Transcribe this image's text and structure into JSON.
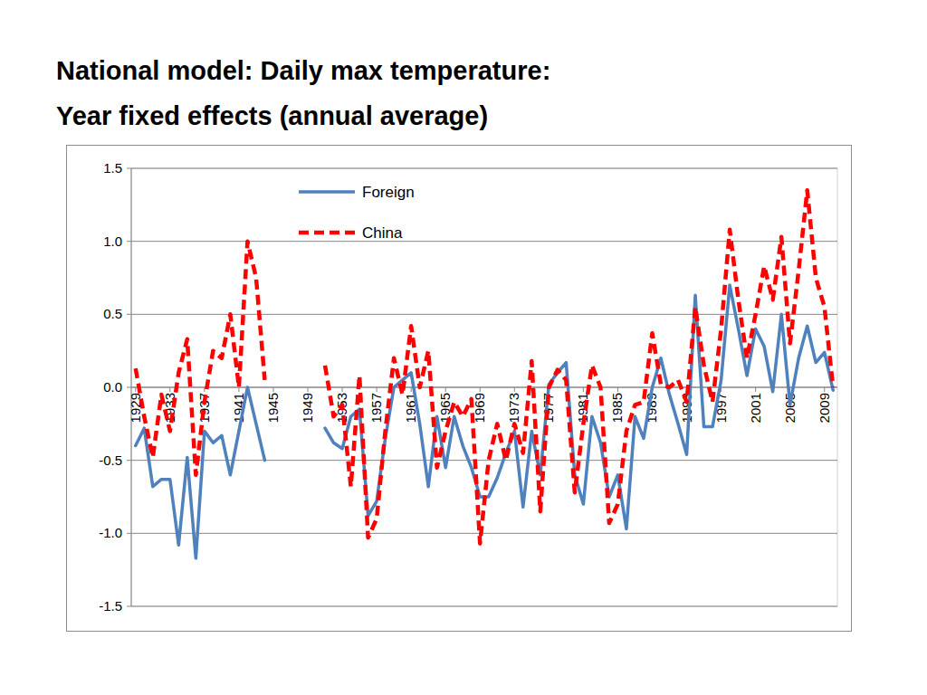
{
  "chart_data": {
    "type": "line",
    "title": "National model: Daily max temperature:",
    "subtitle": "Year fixed effects (annual average)",
    "x": [
      1929,
      1930,
      1931,
      1932,
      1933,
      1934,
      1935,
      1936,
      1937,
      1938,
      1939,
      1940,
      1941,
      1942,
      1943,
      1944,
      1945,
      1946,
      1947,
      1948,
      1949,
      1950,
      1951,
      1952,
      1953,
      1954,
      1955,
      1956,
      1957,
      1958,
      1959,
      1960,
      1961,
      1962,
      1963,
      1964,
      1965,
      1966,
      1967,
      1968,
      1969,
      1970,
      1971,
      1972,
      1973,
      1974,
      1975,
      1976,
      1977,
      1978,
      1979,
      1980,
      1981,
      1982,
      1983,
      1984,
      1985,
      1986,
      1987,
      1988,
      1989,
      1990,
      1991,
      1992,
      1993,
      1994,
      1995,
      1996,
      1997,
      1998,
      1999,
      2000,
      2001,
      2002,
      2003,
      2004,
      2005,
      2006,
      2007,
      2008,
      2009,
      2010
    ],
    "series": [
      {
        "name": "Foreign",
        "color": "#4f81bd",
        "line_style": "solid",
        "values": [
          -0.4,
          -0.28,
          -0.68,
          -0.63,
          -0.63,
          -1.08,
          -0.48,
          -1.17,
          -0.3,
          -0.38,
          -0.33,
          -0.6,
          -0.3,
          0.0,
          -0.25,
          -0.5,
          null,
          null,
          null,
          null,
          null,
          null,
          -0.28,
          -0.38,
          -0.42,
          -0.2,
          -0.15,
          -0.88,
          -0.78,
          -0.35,
          0.0,
          0.05,
          0.1,
          -0.25,
          -0.68,
          -0.2,
          -0.55,
          -0.2,
          -0.4,
          -0.55,
          -0.75,
          -0.75,
          -0.62,
          -0.45,
          -0.3,
          -0.82,
          -0.3,
          -0.6,
          0.02,
          0.1,
          0.17,
          -0.6,
          -0.8,
          -0.2,
          -0.38,
          -0.75,
          -0.6,
          -0.97,
          -0.2,
          -0.35,
          0.0,
          0.2,
          -0.05,
          -0.25,
          -0.46,
          0.63,
          -0.27,
          -0.27,
          0.05,
          0.7,
          0.4,
          0.08,
          0.4,
          0.28,
          -0.03,
          0.5,
          -0.12,
          0.2,
          0.42,
          0.17,
          0.24,
          -0.02
        ]
      },
      {
        "name": "China",
        "color": "#ff0000",
        "line_style": "dashed",
        "values": [
          0.13,
          -0.2,
          -0.48,
          -0.05,
          -0.3,
          0.1,
          0.33,
          -0.6,
          -0.1,
          0.25,
          0.2,
          0.5,
          0.0,
          1.0,
          0.75,
          0.05,
          null,
          null,
          null,
          null,
          null,
          null,
          0.15,
          -0.2,
          -0.12,
          -0.68,
          0.08,
          -1.03,
          -0.9,
          -0.3,
          0.2,
          -0.05,
          0.42,
          0.0,
          0.25,
          -0.55,
          -0.3,
          -0.1,
          -0.2,
          -0.08,
          -1.07,
          -0.5,
          -0.25,
          -0.5,
          -0.25,
          -0.45,
          0.18,
          -0.85,
          0.0,
          0.12,
          0.05,
          -0.72,
          -0.25,
          0.15,
          0.0,
          -0.93,
          -0.8,
          -0.3,
          -0.12,
          -0.1,
          0.37,
          0.02,
          0.0,
          0.05,
          -0.1,
          0.55,
          0.15,
          -0.1,
          0.4,
          1.08,
          0.6,
          0.2,
          0.5,
          0.83,
          0.6,
          1.03,
          0.3,
          0.8,
          1.35,
          0.75,
          0.55,
          0.0
        ]
      }
    ],
    "xlim": [
      1928.5,
      2010.5
    ],
    "xticks": [
      1929,
      1933,
      1937,
      1941,
      1945,
      1949,
      1953,
      1957,
      1961,
      1965,
      1969,
      1973,
      1977,
      1981,
      1985,
      1989,
      1993,
      1997,
      2001,
      2005,
      2009
    ],
    "ylim": [
      -1.5,
      1.5
    ],
    "yticks": [
      -1.5,
      {
        "value": -1.0,
        "label": "-1.0"
      },
      -0.5,
      {
        "value": 0,
        "label": "0.0"
      },
      0.5,
      {
        "value": 1.0,
        "label": "1.0"
      },
      1.5
    ],
    "grid": true,
    "legend": "top-left"
  }
}
